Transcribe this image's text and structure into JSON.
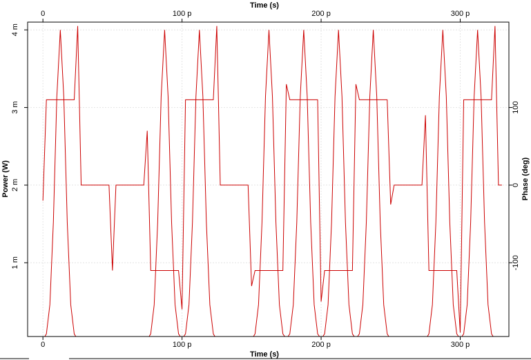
{
  "chart_data": {
    "type": "line",
    "x_label": "Time (s)",
    "y_label": "Power (W)",
    "y2_label": "Phase (deg)",
    "x": [
      0,
      2.5e-12,
      5e-12,
      7.5e-12,
      1e-11,
      1.25e-11,
      1.5e-11,
      1.75e-11,
      2e-11,
      2.25e-11,
      2.5e-11,
      2.75e-11,
      3e-11,
      3.25e-11,
      3.5e-11,
      3.75e-11,
      4e-11,
      4.25e-11,
      4.5e-11,
      4.75e-11,
      5e-11,
      5.25e-11,
      5.5e-11,
      5.75e-11,
      6e-11,
      6.25e-11,
      6.5e-11,
      6.75e-11,
      7e-11,
      7.25e-11,
      7.5e-11,
      7.75e-11,
      8e-11,
      8.25e-11,
      8.5e-11,
      8.75e-11,
      9e-11,
      9.25e-11,
      9.5e-11,
      9.75e-11,
      1e-10,
      1.025e-10,
      1.05e-10,
      1.075e-10,
      1.1e-10,
      1.125e-10,
      1.15e-10,
      1.175e-10,
      1.2e-10,
      1.225e-10,
      1.25e-10,
      1.275e-10,
      1.3e-10,
      1.325e-10,
      1.35e-10,
      1.375e-10,
      1.4e-10,
      1.425e-10,
      1.45e-10,
      1.475e-10,
      1.5e-10,
      1.525e-10,
      1.55e-10,
      1.575e-10,
      1.6e-10,
      1.625e-10,
      1.65e-10,
      1.675e-10,
      1.7e-10,
      1.725e-10,
      1.75e-10,
      1.775e-10,
      1.8e-10,
      1.825e-10,
      1.85e-10,
      1.875e-10,
      1.9e-10,
      1.925e-10,
      1.95e-10,
      1.975e-10,
      2e-10,
      2.025e-10,
      2.05e-10,
      2.075e-10,
      2.1e-10,
      2.125e-10,
      2.15e-10,
      2.175e-10,
      2.2e-10,
      2.225e-10,
      2.25e-10,
      2.275e-10,
      2.3e-10,
      2.325e-10,
      2.35e-10,
      2.375e-10,
      2.4e-10,
      2.425e-10,
      2.45e-10,
      2.475e-10,
      2.5e-10,
      2.525e-10,
      2.55e-10,
      2.575e-10,
      2.6e-10,
      2.625e-10,
      2.65e-10,
      2.675e-10,
      2.7e-10,
      2.725e-10,
      2.75e-10,
      2.775e-10,
      2.8e-10,
      2.825e-10,
      2.85e-10,
      2.875e-10,
      2.9e-10,
      2.925e-10,
      2.95e-10,
      2.975e-10,
      3e-10,
      3.025e-10,
      3.05e-10,
      3.075e-10,
      3.1e-10,
      3.125e-10,
      3.15e-10,
      3.175e-10,
      3.2e-10,
      3.225e-10,
      3.25e-10,
      3.275e-10,
      3.3e-10
    ],
    "series": [
      {
        "color": "#cc0000",
        "axis": "y",
        "values": [
          1e-05,
          8.4e-05,
          0.00046,
          0.00152,
          0.00314,
          0.004,
          0.00314,
          0.00152,
          0.00046,
          8.4e-05,
          1e-05,
          0,
          0,
          0,
          0,
          0,
          0,
          0,
          0,
          0,
          0,
          0,
          0,
          0,
          0,
          0,
          0,
          0,
          0,
          0,
          1e-05,
          8.4e-05,
          0.00046,
          0.00152,
          0.00314,
          0.004,
          0.00314,
          0.00152,
          0.00046,
          8.4e-05,
          2e-05,
          8.4e-05,
          0.00046,
          0.00152,
          0.00314,
          0.004,
          0.00314,
          0.00152,
          0.00046,
          8.4e-05,
          1e-05,
          0,
          0,
          0,
          0,
          0,
          0,
          0,
          0,
          0,
          1e-05,
          8.4e-05,
          0.00046,
          0.00152,
          0.00314,
          0.004,
          0.00314,
          0.00152,
          0.00046,
          8.4e-05,
          2e-05,
          8.4e-05,
          0.00046,
          0.00152,
          0.00314,
          0.004,
          0.00314,
          0.00152,
          0.00046,
          8.4e-05,
          2e-05,
          8.4e-05,
          0.00046,
          0.00152,
          0.00314,
          0.004,
          0.00314,
          0.00152,
          0.00046,
          8.4e-05,
          2e-05,
          8.4e-05,
          0.00046,
          0.00152,
          0.00314,
          0.004,
          0.00314,
          0.00152,
          0.00046,
          8.4e-05,
          1e-05,
          0,
          0,
          0,
          0,
          0,
          0,
          0,
          0,
          0,
          1e-05,
          8.4e-05,
          0.00046,
          0.00152,
          0.00314,
          0.004,
          0.00314,
          0.00152,
          0.00046,
          8.4e-05,
          2e-05,
          8.4e-05,
          0.00046,
          0.00152,
          0.00314,
          0.004,
          0.00314,
          0.00152,
          0.00046,
          8.4e-05,
          1e-05,
          0,
          0
        ]
      },
      {
        "color": "#cc0000",
        "axis": "y2",
        "values": [
          -20,
          110,
          110,
          110,
          110,
          110,
          110,
          110,
          110,
          110,
          205,
          0,
          0,
          0,
          0,
          0,
          0,
          0,
          0,
          0,
          -110,
          0,
          0,
          0,
          0,
          0,
          0,
          0,
          0,
          0,
          70,
          -110,
          -110,
          -110,
          -110,
          -110,
          -110,
          -110,
          -110,
          -110,
          -160,
          110,
          110,
          110,
          110,
          110,
          110,
          110,
          110,
          110,
          205,
          0,
          0,
          0,
          0,
          0,
          0,
          0,
          0,
          0,
          -130,
          -110,
          -110,
          -110,
          -110,
          -110,
          -110,
          -110,
          -110,
          -110,
          130,
          110,
          110,
          110,
          110,
          110,
          110,
          110,
          110,
          110,
          -150,
          -110,
          -110,
          -110,
          -110,
          -110,
          -110,
          -110,
          -110,
          -110,
          130,
          110,
          110,
          110,
          110,
          110,
          110,
          110,
          110,
          110,
          -25,
          0,
          0,
          0,
          0,
          0,
          0,
          0,
          0,
          0,
          90,
          -110,
          -110,
          -110,
          -110,
          -110,
          -110,
          -110,
          -110,
          -110,
          -190,
          110,
          110,
          110,
          110,
          110,
          110,
          110,
          110,
          110,
          205,
          0,
          0
        ]
      }
    ],
    "xlim": [
      -1.1e-11,
      3.35e-10
    ],
    "xticks": [
      0,
      {
        "value": 1e-10,
        "label": "100 p"
      },
      {
        "value": 2e-10,
        "label": "200 p"
      },
      {
        "value": 3e-10,
        "label": "300 p"
      }
    ],
    "ylim": [
      5e-05,
      0.0041
    ],
    "yticks": [
      {
        "value": 0.001,
        "label": "1 m"
      },
      {
        "value": 0.002,
        "label": "2 m"
      },
      {
        "value": 0.003,
        "label": "3 m"
      },
      {
        "value": 0.004,
        "label": "4 m"
      }
    ],
    "y2lim": [
      -195,
      210
    ],
    "y2ticks": [
      -100,
      0,
      100
    ],
    "grid": true
  }
}
